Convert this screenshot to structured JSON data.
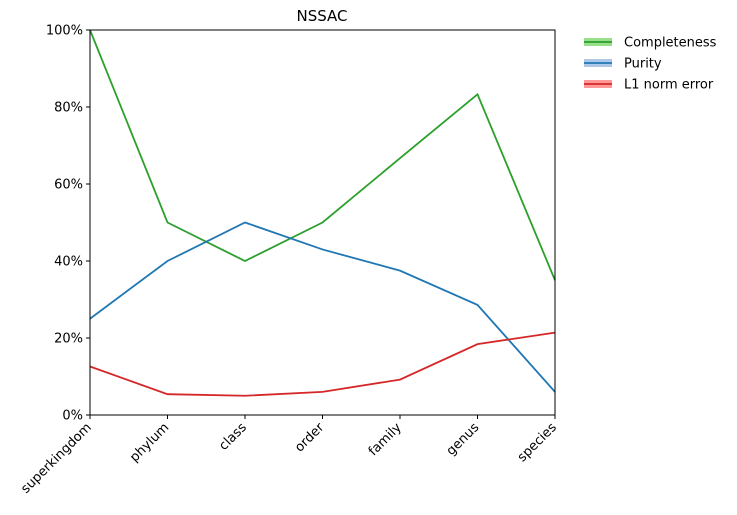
{
  "chart_data": {
    "type": "line",
    "title": "NSSAC",
    "xlabel": "",
    "ylabel": "",
    "categories": [
      "superkingdom",
      "phylum",
      "class",
      "order",
      "family",
      "genus",
      "species"
    ],
    "ylim": [
      0,
      100
    ],
    "yticks": [
      "0%",
      "20%",
      "40%",
      "60%",
      "80%",
      "100%"
    ],
    "ytick_values": [
      0,
      20,
      40,
      60,
      80,
      100
    ],
    "grid": false,
    "legend_position": "outside-top-right",
    "series": [
      {
        "name": "Completeness",
        "color": "#2ca02c",
        "band_color": "#98df8a",
        "values": [
          100,
          50,
          40,
          50,
          66.7,
          83.3,
          35
        ]
      },
      {
        "name": "Purity",
        "color": "#1f77b4",
        "band_color": "#aec7e8",
        "values": [
          25,
          40,
          50,
          43,
          37.5,
          28.6,
          6
        ]
      },
      {
        "name": "L1 norm error",
        "color": "#d62728",
        "band_color": "#ff9896",
        "values": [
          12.6,
          5.4,
          5.0,
          6.0,
          9.2,
          18.4,
          21.4
        ]
      }
    ]
  }
}
